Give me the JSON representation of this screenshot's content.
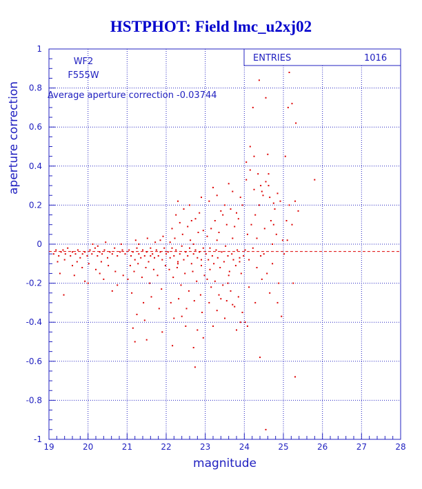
{
  "chart_data": {
    "type": "scatter",
    "title": "HSTPHOT: Field lmc_u2xj02",
    "xlabel": "magnitude",
    "ylabel": "aperture correction",
    "xlim": [
      19,
      28
    ],
    "ylim": [
      -1,
      1
    ],
    "x_ticks": [
      "19",
      "20",
      "21",
      "22",
      "23",
      "24",
      "25",
      "26",
      "27",
      "28"
    ],
    "y_ticks": [
      "1",
      "0.8",
      "0.6",
      "0.4",
      "0.2",
      "0",
      "-0.2",
      "-0.4",
      "-0.6",
      "-0.8",
      "-1"
    ],
    "grid": true,
    "chip": "WF2",
    "filter": "F555W",
    "average_text": "Average aperture correction -0.03744",
    "average_value": -0.03744,
    "stats_label": "ENTRIES",
    "stats_value": "1016",
    "colors": {
      "axis": "#2020c0",
      "grid": "#2020c0",
      "points": "#dd0000",
      "title": "#0000cc"
    },
    "points": [
      [
        19.12,
        -0.05
      ],
      [
        19.18,
        -0.03
      ],
      [
        19.25,
        -0.06
      ],
      [
        19.31,
        -0.04
      ],
      [
        19.36,
        -0.03
      ],
      [
        19.42,
        -0.05
      ],
      [
        19.48,
        -0.02
      ],
      [
        19.55,
        -0.06
      ],
      [
        19.6,
        -0.04
      ],
      [
        19.68,
        -0.05
      ],
      [
        19.74,
        -0.03
      ],
      [
        19.8,
        -0.07
      ],
      [
        19.86,
        -0.05
      ],
      [
        19.92,
        -0.04
      ],
      [
        19.98,
        -0.06
      ],
      [
        20.05,
        -0.03
      ],
      [
        20.1,
        -0.05
      ],
      [
        20.18,
        -0.02
      ],
      [
        20.24,
        -0.06
      ],
      [
        20.3,
        -0.04
      ],
      [
        20.36,
        -0.05
      ],
      [
        20.42,
        -0.03
      ],
      [
        20.5,
        -0.07
      ],
      [
        20.56,
        -0.04
      ],
      [
        20.62,
        -0.05
      ],
      [
        20.68,
        -0.02
      ],
      [
        20.75,
        -0.06
      ],
      [
        20.82,
        -0.04
      ],
      [
        20.88,
        -0.03
      ],
      [
        20.95,
        -0.05
      ],
      [
        19.22,
        -0.09
      ],
      [
        19.4,
        -0.08
      ],
      [
        19.6,
        -0.11
      ],
      [
        19.72,
        -0.09
      ],
      [
        19.85,
        -0.12
      ],
      [
        20.02,
        -0.1
      ],
      [
        20.2,
        -0.13
      ],
      [
        20.34,
        -0.09
      ],
      [
        20.52,
        -0.11
      ],
      [
        20.7,
        -0.14
      ],
      [
        19.65,
        -0.16
      ],
      [
        19.92,
        -0.19
      ],
      [
        20.0,
        -0.2
      ],
      [
        19.28,
        -0.15
      ],
      [
        19.38,
        -0.26
      ],
      [
        20.3,
        -0.15
      ],
      [
        20.4,
        -0.18
      ],
      [
        20.62,
        -0.24
      ],
      [
        20.75,
        -0.21
      ],
      [
        20.9,
        -0.16
      ],
      [
        20.12,
        0.0
      ],
      [
        20.25,
        -0.01
      ],
      [
        20.45,
        0.01
      ],
      [
        20.85,
        0.0
      ],
      [
        21.05,
        -0.03
      ],
      [
        21.1,
        -0.06
      ],
      [
        21.15,
        -0.04
      ],
      [
        21.2,
        -0.08
      ],
      [
        21.25,
        -0.02
      ],
      [
        21.3,
        -0.05
      ],
      [
        21.35,
        -0.07
      ],
      [
        21.4,
        -0.03
      ],
      [
        21.45,
        -0.06
      ],
      [
        21.5,
        -0.04
      ],
      [
        21.55,
        -0.09
      ],
      [
        21.6,
        -0.02
      ],
      [
        21.65,
        -0.05
      ],
      [
        21.7,
        -0.07
      ],
      [
        21.75,
        -0.03
      ],
      [
        21.8,
        -0.06
      ],
      [
        21.85,
        -0.04
      ],
      [
        21.9,
        -0.08
      ],
      [
        21.95,
        -0.02
      ],
      [
        22.0,
        -0.05
      ],
      [
        21.08,
        -0.11
      ],
      [
        21.18,
        -0.14
      ],
      [
        21.28,
        -0.1
      ],
      [
        21.38,
        -0.17
      ],
      [
        21.48,
        -0.12
      ],
      [
        21.58,
        -0.2
      ],
      [
        21.68,
        -0.13
      ],
      [
        21.78,
        -0.16
      ],
      [
        21.88,
        -0.23
      ],
      [
        21.98,
        -0.11
      ],
      [
        21.12,
        -0.25
      ],
      [
        21.42,
        -0.3
      ],
      [
        21.62,
        -0.27
      ],
      [
        21.82,
        -0.33
      ],
      [
        21.22,
        0.02
      ],
      [
        21.52,
        0.03
      ],
      [
        21.72,
        0.01
      ],
      [
        21.92,
        0.04
      ],
      [
        21.3,
        0.0
      ],
      [
        21.85,
        0.02
      ],
      [
        21.25,
        -0.36
      ],
      [
        21.45,
        -0.39
      ],
      [
        21.9,
        -0.45
      ],
      [
        21.2,
        -0.5
      ],
      [
        21.5,
        -0.49
      ],
      [
        21.15,
        -0.43
      ],
      [
        21.02,
        -0.18
      ],
      [
        21.6,
        -0.06
      ],
      [
        22.05,
        -0.04
      ],
      [
        22.1,
        -0.07
      ],
      [
        22.15,
        -0.02
      ],
      [
        22.2,
        -0.06
      ],
      [
        22.25,
        -0.03
      ],
      [
        22.3,
        -0.09
      ],
      [
        22.35,
        -0.05
      ],
      [
        22.4,
        -0.01
      ],
      [
        22.45,
        -0.08
      ],
      [
        22.5,
        -0.04
      ],
      [
        22.55,
        -0.06
      ],
      [
        22.6,
        -0.02
      ],
      [
        22.65,
        -0.1
      ],
      [
        22.7,
        -0.05
      ],
      [
        22.75,
        -0.03
      ],
      [
        22.8,
        -0.07
      ],
      [
        22.85,
        -0.04
      ],
      [
        22.9,
        -0.08
      ],
      [
        22.95,
        -0.02
      ],
      [
        22.08,
        -0.13
      ],
      [
        22.18,
        -0.17
      ],
      [
        22.28,
        -0.12
      ],
      [
        22.38,
        -0.21
      ],
      [
        22.48,
        -0.15
      ],
      [
        22.58,
        -0.24
      ],
      [
        22.68,
        -0.14
      ],
      [
        22.78,
        -0.19
      ],
      [
        22.88,
        -0.26
      ],
      [
        22.98,
        -0.16
      ],
      [
        22.12,
        -0.3
      ],
      [
        22.32,
        -0.28
      ],
      [
        22.52,
        -0.33
      ],
      [
        22.72,
        -0.29
      ],
      [
        22.92,
        -0.35
      ],
      [
        22.22,
        0.03
      ],
      [
        22.42,
        0.05
      ],
      [
        22.62,
        0.02
      ],
      [
        22.82,
        0.06
      ],
      [
        22.15,
        0.08
      ],
      [
        22.35,
        0.11
      ],
      [
        22.55,
        0.09
      ],
      [
        22.75,
        0.13
      ],
      [
        22.95,
        0.07
      ],
      [
        22.25,
        0.15
      ],
      [
        22.45,
        0.18
      ],
      [
        22.65,
        0.12
      ],
      [
        22.85,
        0.16
      ],
      [
        22.3,
        0.22
      ],
      [
        22.6,
        0.2
      ],
      [
        22.9,
        0.24
      ],
      [
        22.2,
        -0.38
      ],
      [
        22.5,
        -0.42
      ],
      [
        22.8,
        -0.44
      ],
      [
        22.95,
        -0.48
      ],
      [
        22.7,
        -0.53
      ],
      [
        22.4,
        -0.37
      ],
      [
        22.1,
        0.01
      ],
      [
        22.7,
        0.0
      ],
      [
        22.3,
        -0.1
      ],
      [
        22.9,
        -0.11
      ],
      [
        22.16,
        -0.52
      ],
      [
        22.74,
        -0.63
      ],
      [
        23.02,
        -0.05
      ],
      [
        23.08,
        -0.08
      ],
      [
        23.12,
        -0.02
      ],
      [
        23.18,
        -0.06
      ],
      [
        23.22,
        -0.1
      ],
      [
        23.28,
        -0.03
      ],
      [
        23.32,
        -0.07
      ],
      [
        23.38,
        -0.12
      ],
      [
        23.42,
        -0.04
      ],
      [
        23.48,
        -0.09
      ],
      [
        23.52,
        -0.01
      ],
      [
        23.58,
        -0.06
      ],
      [
        23.62,
        -0.14
      ],
      [
        23.68,
        -0.05
      ],
      [
        23.72,
        -0.08
      ],
      [
        23.78,
        -0.11
      ],
      [
        23.82,
        -0.03
      ],
      [
        23.88,
        -0.07
      ],
      [
        23.92,
        -0.15
      ],
      [
        23.98,
        -0.06
      ],
      [
        23.05,
        0.04
      ],
      [
        23.15,
        0.08
      ],
      [
        23.25,
        0.12
      ],
      [
        23.35,
        0.06
      ],
      [
        23.45,
        0.15
      ],
      [
        23.55,
        0.1
      ],
      [
        23.65,
        0.18
      ],
      [
        23.75,
        0.09
      ],
      [
        23.85,
        0.13
      ],
      [
        23.95,
        0.2
      ],
      [
        23.1,
        0.22
      ],
      [
        23.3,
        0.25
      ],
      [
        23.5,
        0.2
      ],
      [
        23.7,
        0.27
      ],
      [
        23.9,
        0.24
      ],
      [
        23.2,
        0.29
      ],
      [
        23.6,
        0.31
      ],
      [
        23.4,
        0.17
      ],
      [
        23.8,
        0.16
      ],
      [
        23.05,
        -0.18
      ],
      [
        23.15,
        -0.22
      ],
      [
        23.25,
        -0.19
      ],
      [
        23.35,
        -0.26
      ],
      [
        23.45,
        -0.21
      ],
      [
        23.55,
        -0.29
      ],
      [
        23.65,
        -0.24
      ],
      [
        23.75,
        -0.32
      ],
      [
        23.85,
        -0.27
      ],
      [
        23.95,
        -0.35
      ],
      [
        23.1,
        -0.3
      ],
      [
        23.3,
        -0.34
      ],
      [
        23.5,
        -0.38
      ],
      [
        23.7,
        -0.31
      ],
      [
        23.9,
        -0.4
      ],
      [
        23.4,
        -0.28
      ],
      [
        23.6,
        -0.16
      ],
      [
        23.2,
        -0.42
      ],
      [
        23.8,
        -0.44
      ],
      [
        23.3,
        0.02
      ],
      [
        23.7,
        0.03
      ],
      [
        23.12,
        -0.13
      ],
      [
        23.58,
        -0.2
      ],
      [
        23.88,
        -0.09
      ],
      [
        24.02,
        -0.03
      ],
      [
        24.08,
        0.05
      ],
      [
        24.12,
        -0.08
      ],
      [
        24.18,
        0.1
      ],
      [
        24.22,
        -0.02
      ],
      [
        24.28,
        0.15
      ],
      [
        24.32,
        -0.12
      ],
      [
        24.38,
        0.2
      ],
      [
        24.42,
        -0.06
      ],
      [
        24.48,
        0.25
      ],
      [
        24.52,
        0.08
      ],
      [
        24.58,
        -0.15
      ],
      [
        24.62,
        0.3
      ],
      [
        24.68,
        0.12
      ],
      [
        24.72,
        -0.1
      ],
      [
        24.78,
        0.18
      ],
      [
        24.82,
        0.05
      ],
      [
        24.88,
        -0.2
      ],
      [
        24.92,
        0.22
      ],
      [
        24.98,
        0.02
      ],
      [
        24.05,
        0.33
      ],
      [
        24.15,
        0.38
      ],
      [
        24.25,
        0.28
      ],
      [
        24.35,
        0.36
      ],
      [
        24.45,
        0.27
      ],
      [
        24.55,
        0.32
      ],
      [
        24.65,
        0.24
      ],
      [
        24.75,
        0.21
      ],
      [
        24.85,
        0.26
      ],
      [
        24.05,
        0.42
      ],
      [
        24.25,
        0.45
      ],
      [
        24.42,
        0.3
      ],
      [
        24.62,
        0.36
      ],
      [
        24.12,
        -0.22
      ],
      [
        24.28,
        -0.3
      ],
      [
        24.45,
        -0.18
      ],
      [
        24.65,
        -0.25
      ],
      [
        24.85,
        -0.3
      ],
      [
        24.02,
        -0.4
      ],
      [
        24.08,
        -0.42
      ],
      [
        24.15,
        0.5
      ],
      [
        24.22,
        0.7
      ],
      [
        24.38,
        0.84
      ],
      [
        24.55,
        0.75
      ],
      [
        24.6,
        0.46
      ],
      [
        24.32,
        0.03
      ],
      [
        24.72,
        0.0
      ],
      [
        24.5,
        -0.05
      ],
      [
        24.4,
        -0.58
      ],
      [
        24.55,
        -0.95
      ],
      [
        24.95,
        -0.37
      ],
      [
        24.75,
        0.1
      ],
      [
        25.02,
        -0.05
      ],
      [
        25.08,
        0.12
      ],
      [
        25.15,
        0.2
      ],
      [
        25.22,
        0.1
      ],
      [
        25.3,
        0.22
      ],
      [
        25.38,
        0.17
      ],
      [
        25.12,
        0.7
      ],
      [
        25.22,
        0.72
      ],
      [
        25.32,
        0.62
      ],
      [
        25.1,
        0.02
      ],
      [
        25.15,
        0.88
      ],
      [
        25.3,
        -0.68
      ],
      [
        25.8,
        0.33
      ],
      [
        25.25,
        -0.2
      ],
      [
        25.05,
        0.45
      ]
    ]
  }
}
